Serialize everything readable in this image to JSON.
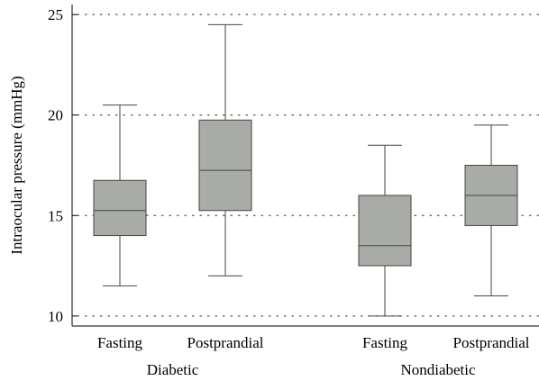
{
  "chart_data": {
    "type": "box",
    "title": "",
    "xlabel": "",
    "ylabel": "Intraocular pressure (mmHg)",
    "ylim": [
      9.5,
      25.5
    ],
    "yticks": [
      10,
      15,
      20,
      25
    ],
    "grid": "horizontal-dotted",
    "box_color": "#a9aba7",
    "groups": [
      {
        "name": "Diabetic",
        "boxes": [
          {
            "category": "Fasting",
            "whisker_low": 11.5,
            "q1": 14.0,
            "median": 15.25,
            "q3": 16.75,
            "whisker_high": 20.5
          },
          {
            "category": "Postprandial",
            "whisker_low": 12.0,
            "q1": 15.25,
            "median": 17.25,
            "q3": 19.75,
            "whisker_high": 24.5
          }
        ]
      },
      {
        "name": "Nondiabetic",
        "boxes": [
          {
            "category": "Fasting",
            "whisker_low": 10.0,
            "q1": 12.5,
            "median": 13.5,
            "q3": 16.0,
            "whisker_high": 18.5
          },
          {
            "category": "Postprandial",
            "whisker_low": 11.0,
            "q1": 14.5,
            "median": 16.0,
            "q3": 17.5,
            "whisker_high": 19.5
          }
        ]
      }
    ]
  }
}
